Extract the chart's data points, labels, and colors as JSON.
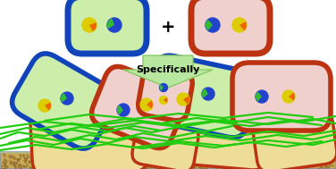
{
  "bg_color": "#ffffff",
  "arrow_color": "#b8e8a0",
  "arrow_border_color": "#88cc66",
  "arrow_text": "Specifically",
  "arrow_text_color": "#000000",
  "surface_color": "#c8a850",
  "surface_top_color": "#b8b870",
  "surface_border": "#8899aa",
  "blue_border": "#1144bb",
  "red_border": "#bb3311",
  "green_fill": "#cceeaa",
  "pink_fill": "#f0d0cc",
  "yellow_fill": "#eedd99",
  "fiber_color": "#22cc11",
  "pie_yellow": "#ddcc00",
  "pie_orange": "#ee6600",
  "pie_blue": "#2244cc",
  "pie_green": "#33bb33",
  "pie_bg": "#ffffff"
}
